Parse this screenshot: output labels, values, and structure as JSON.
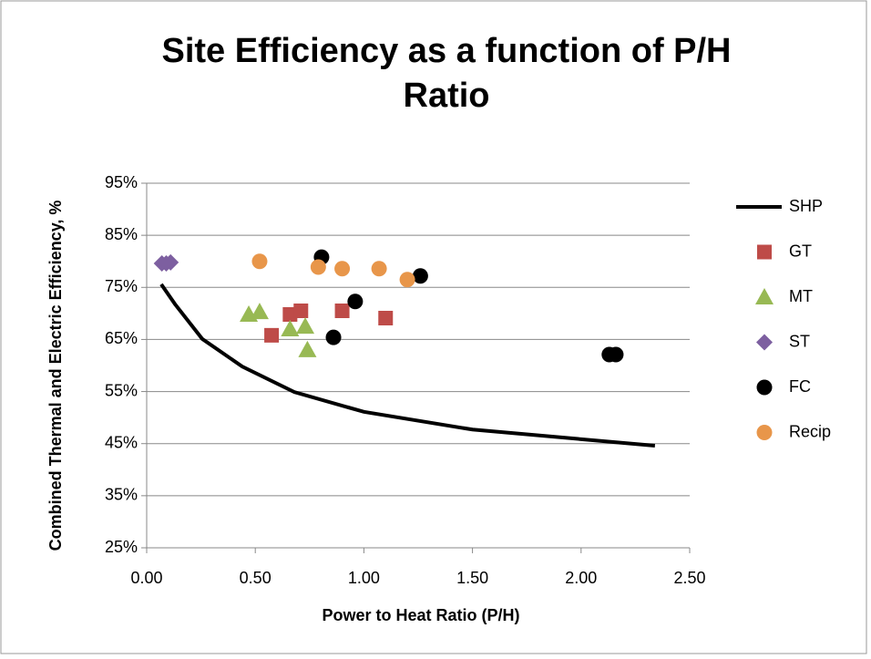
{
  "chart_data": {
    "type": "scatter",
    "title": "Site Efficiency as a function of P/H Ratio",
    "x_label": "Power to Heat Ratio (P/H)",
    "y_label": "Combined Thermal and Electric Efficiency, %",
    "xlim": [
      0,
      2.5
    ],
    "xticks": [
      {
        "value": 0,
        "label": "0.00"
      },
      {
        "value": 0.5,
        "label": "0.50"
      },
      {
        "value": 1,
        "label": "1.00"
      },
      {
        "value": 1.5,
        "label": "1.50"
      },
      {
        "value": 2,
        "label": "2.00"
      },
      {
        "value": 2.5,
        "label": "2.50"
      }
    ],
    "ylim": [
      25,
      95
    ],
    "yticks": [
      {
        "value": 25,
        "label": "25%"
      },
      {
        "value": 35,
        "label": "35%"
      },
      {
        "value": 45,
        "label": "45%"
      },
      {
        "value": 55,
        "label": "55%"
      },
      {
        "value": 65,
        "label": "65%"
      },
      {
        "value": 75,
        "label": "75%"
      },
      {
        "value": 85,
        "label": "85%"
      },
      {
        "value": 95,
        "label": "95%"
      }
    ],
    "grid": true,
    "legend": "right",
    "series": [
      {
        "name": "SHP",
        "color": "#000000",
        "marker": "line",
        "x": [
          0.067,
          0.13,
          0.256,
          0.44,
          0.68,
          1.0,
          1.5,
          2.34
        ],
        "y": [
          75.6,
          71.8,
          65.1,
          59.8,
          54.9,
          51.1,
          47.7,
          44.6
        ]
      },
      {
        "name": "GT",
        "color": "#be4b48",
        "marker": "square",
        "x": [
          0.575,
          0.66,
          0.71,
          0.9,
          1.1
        ],
        "y": [
          65.8,
          69.8,
          70.5,
          70.5,
          69.1
        ]
      },
      {
        "name": "MT",
        "color": "#98b954",
        "marker": "triangle",
        "x": [
          0.47,
          0.52,
          0.66,
          0.73,
          0.74
        ],
        "y": [
          69.8,
          70.3,
          67.0,
          67.5,
          63.0
        ]
      },
      {
        "name": "ST",
        "color": "#7d5fa0",
        "marker": "diamond",
        "x": [
          0.07,
          0.09,
          0.11
        ],
        "y": [
          79.6,
          79.6,
          79.8
        ]
      },
      {
        "name": "FC",
        "color": "#000000",
        "marker": "circle",
        "x": [
          0.805,
          1.26,
          0.96,
          0.86,
          2.13,
          2.16
        ],
        "y": [
          80.8,
          77.2,
          72.3,
          65.4,
          62.1,
          62.1
        ]
      },
      {
        "name": "Recip",
        "color": "#e8964a",
        "marker": "circle",
        "x": [
          0.52,
          0.79,
          0.9,
          1.07,
          1.2
        ],
        "y": [
          80.0,
          78.9,
          78.6,
          78.6,
          76.5
        ]
      }
    ]
  }
}
